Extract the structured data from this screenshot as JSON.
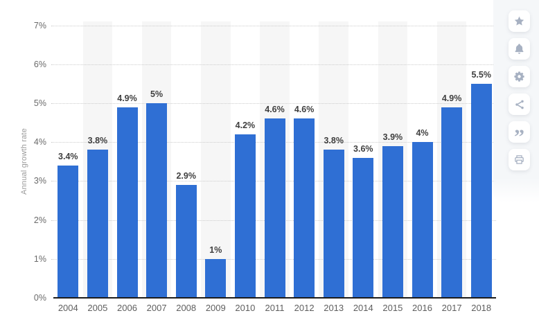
{
  "chart_data": {
    "type": "bar",
    "title": "",
    "xlabel": "",
    "ylabel": "Annual growth rate",
    "categories": [
      "2004",
      "2005",
      "2006",
      "2007",
      "2008",
      "2009",
      "2010",
      "2011",
      "2012",
      "2013",
      "2014",
      "2015",
      "2016",
      "2017",
      "2018"
    ],
    "values": [
      3.4,
      3.8,
      4.9,
      5,
      2.9,
      1,
      4.2,
      4.6,
      4.6,
      3.8,
      3.6,
      3.9,
      4,
      4.9,
      5.5
    ],
    "value_labels": [
      "3.4%",
      "3.8%",
      "4.9%",
      "5%",
      "2.9%",
      "1%",
      "4.2%",
      "4.6%",
      "4.6%",
      "3.8%",
      "3.6%",
      "3.9%",
      "4%",
      "4.9%",
      "5.5%"
    ],
    "y_ticks": [
      "0%",
      "1%",
      "2%",
      "3%",
      "4%",
      "5%",
      "6%",
      "7%"
    ],
    "ylim": [
      0,
      7
    ],
    "grid": "horizontal-dotted",
    "legend": "none",
    "colors": {
      "bar": "#2f6fd4",
      "stripe": "#f6f6f6",
      "gridline": "#cccccc",
      "axis_line": "#1c1c1c",
      "value_label": "#3f3f3f",
      "tick_label": "#6a6a6a",
      "axis_title": "#9a9a9a"
    }
  },
  "toolbar": {
    "background": "#f5f7f9",
    "icon_color": "#a7b1c2",
    "buttons": [
      {
        "name": "favorite",
        "icon": "star-icon"
      },
      {
        "name": "notifications",
        "icon": "bell-icon"
      },
      {
        "name": "settings",
        "icon": "gear-icon"
      },
      {
        "name": "share",
        "icon": "share-icon"
      },
      {
        "name": "cite",
        "icon": "quote-icon"
      },
      {
        "name": "print",
        "icon": "print-icon"
      }
    ]
  }
}
